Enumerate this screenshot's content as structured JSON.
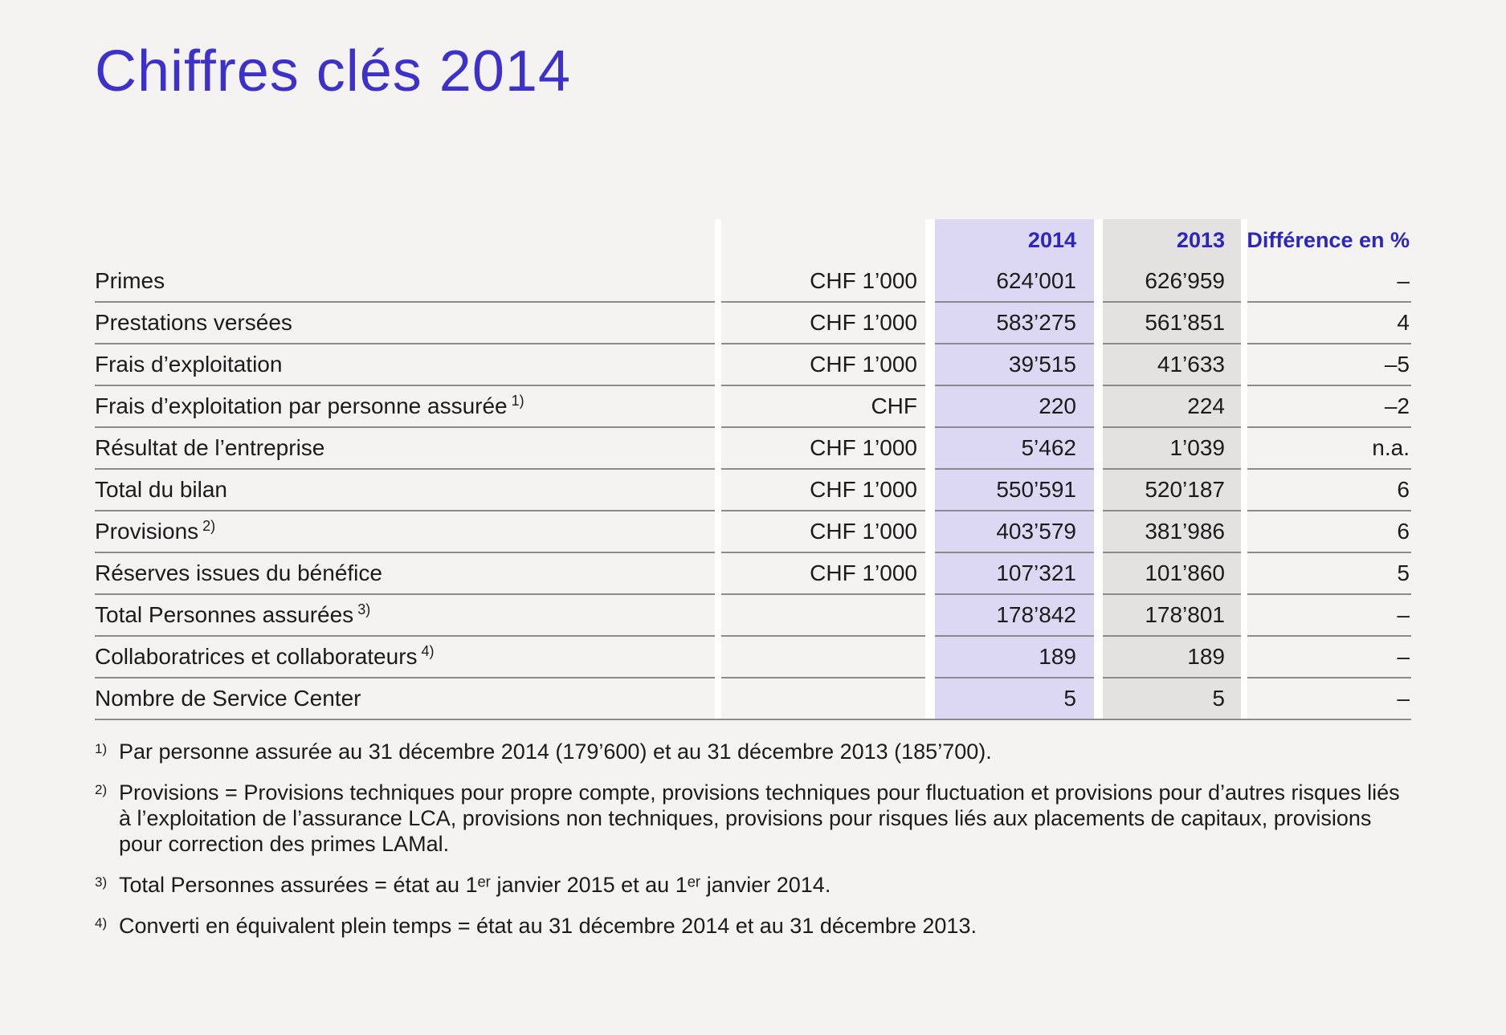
{
  "page": {
    "title": "Chiffres clés 2014"
  },
  "colors": {
    "bg": "#f4f3f1",
    "ink": "#1b1b1b",
    "accent": "#3c31cb",
    "headblue": "#2c26bd",
    "purple": "#dcd8f3",
    "graycol": "#e3e2e0",
    "line": "#8b8b8b"
  },
  "table": {
    "header": {
      "col2014": "2014",
      "col2013": "2013",
      "diff": "Différence en %"
    },
    "rows": [
      {
        "label": "Primes",
        "unit": "CHF 1’000",
        "y2014": "624’001",
        "y2013": "626’959",
        "diff": "–"
      },
      {
        "label": "Prestations versées",
        "unit": "CHF 1’000",
        "y2014": "583’275",
        "y2013": "561’851",
        "diff": "4"
      },
      {
        "label": "Frais d’exploitation",
        "unit": "CHF 1’000",
        "y2014": "39’515",
        "y2013": "41’633",
        "diff": "–5"
      },
      {
        "label": "Frais d’exploitation par personne assurée",
        "sup": "1)",
        "unit": "CHF",
        "y2014": "220",
        "y2013": "224",
        "diff": "–2"
      },
      {
        "label": "Résultat de l’entreprise",
        "unit": "CHF 1’000",
        "y2014": "5’462",
        "y2013": "1’039",
        "diff": "n.a."
      },
      {
        "label": "Total du bilan",
        "unit": "CHF 1’000",
        "y2014": "550’591",
        "y2013": "520’187",
        "diff": "6"
      },
      {
        "label": "Provisions",
        "sup": "2)",
        "unit": "CHF 1’000",
        "y2014": "403’579",
        "y2013": "381’986",
        "diff": "6"
      },
      {
        "label": "Réserves issues du bénéfice",
        "unit": "CHF 1’000",
        "y2014": "107’321",
        "y2013": "101’860",
        "diff": "5"
      },
      {
        "label": "Total Personnes assurées",
        "sup": "3)",
        "unit": "",
        "y2014": "178’842",
        "y2013": "178’801",
        "diff": "–"
      },
      {
        "label": "Collaboratrices et collaborateurs",
        "sup": "4)",
        "unit": "",
        "y2014": "189",
        "y2013": "189",
        "diff": "–"
      },
      {
        "label": "Nombre de Service Center",
        "unit": "",
        "y2014": "5",
        "y2013": "5",
        "diff": "–"
      }
    ]
  },
  "footnotes": [
    {
      "marker": "1)",
      "text": "Par personne assurée au 31 décembre 2014 (179’600) et au 31 décembre 2013 (185’700)."
    },
    {
      "marker": "2)",
      "text": "Provisions = Provisions techniques pour propre compte, provisions techniques pour fluctuation et provisions pour d’autres risques liés à l’exploitation de l’assurance LCA, provisions non techniques, provisions pour risques liés aux placements de capitaux, provisions pour correction des primes LAMal."
    },
    {
      "marker": "3)",
      "text": "Total Personnes assurées = état au 1ᵉʳ janvier 2015 et au 1ᵉʳ janvier 2014."
    },
    {
      "marker": "4)",
      "text": "Converti en équivalent plein temps = état au 31 décembre 2014 et au 31 décembre 2013."
    }
  ]
}
